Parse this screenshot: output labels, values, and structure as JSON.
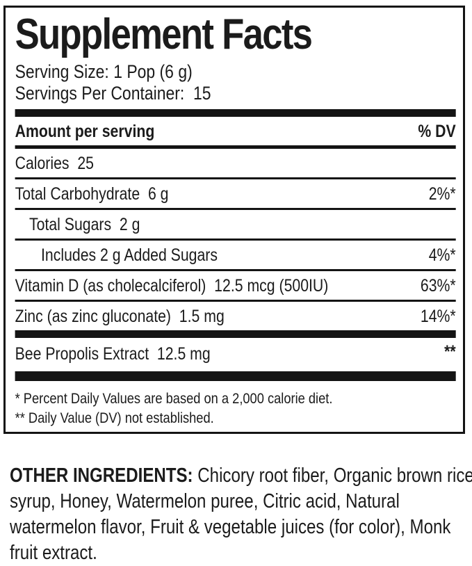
{
  "label": {
    "title": "Supplement Facts",
    "serving_size": "Serving Size: 1 Pop (6 g)",
    "servings_per_container": "Servings Per Container:  15",
    "header": {
      "amount": "Amount per serving",
      "dv": "% DV"
    },
    "rows": [
      {
        "label": "Calories  25",
        "value": ""
      },
      {
        "label": "Total Carbohydrate  6 g",
        "value": "2%*"
      },
      {
        "label": "Total Sugars  2 g",
        "value": ""
      },
      {
        "label": "Includes 2 g Added Sugars",
        "value": "4%*"
      },
      {
        "label": "Vitamin D (as cholecalciferol)  12.5 mcg (500IU)",
        "value": "63%*"
      },
      {
        "label": "Zinc (as zinc gluconate)  1.5 mg",
        "value": "14%*"
      },
      {
        "label": "Bee Propolis Extract  12.5 mg",
        "value": "**"
      }
    ],
    "footnotes": [
      "* Percent Daily Values are based on a 2,000 calorie diet.",
      "** Daily Value (DV) not established."
    ]
  },
  "other_ingredients": {
    "heading": "OTHER INGREDIENTS:",
    "line1_rest": " Chicory root fiber, Organic brown rice",
    "line2": "syrup, Honey, Watermelon puree, Citric acid, Natural",
    "line3": "watermelon flavor, Fruit & vegetable juices (for color), Monk",
    "line4": "fruit extract."
  },
  "colors": {
    "text": "#1b1b1b",
    "rule": "#141414",
    "background": "#ffffff"
  }
}
